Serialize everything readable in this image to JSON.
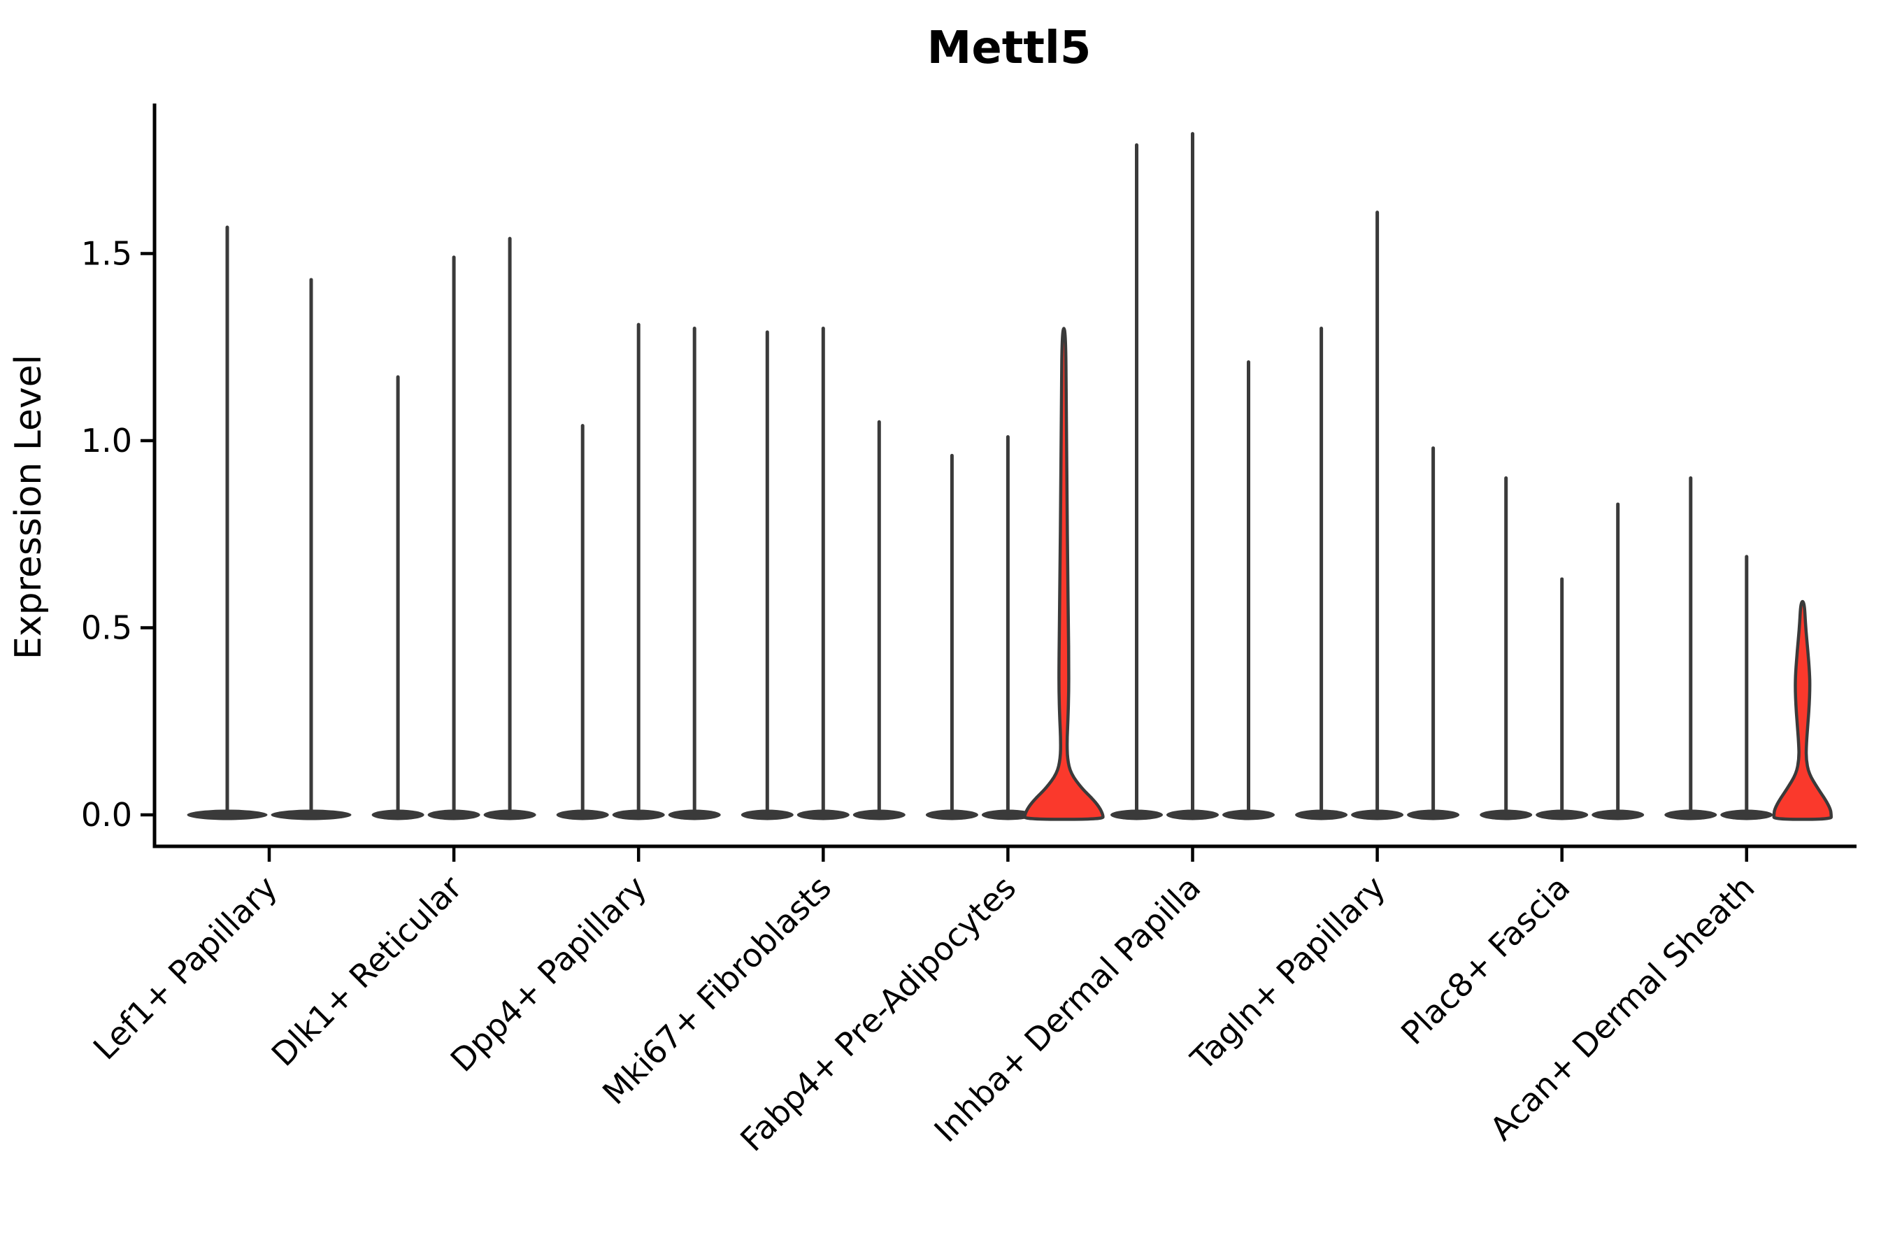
{
  "title": "Mettl5",
  "ylabel": "Expression Level",
  "chart_data": {
    "type": "violin",
    "title": "Mettl5",
    "xlabel": "",
    "ylabel": "Expression Level",
    "ylim": [
      0,
      1.9
    ],
    "grid": false,
    "legend": "none",
    "yticks": [
      {
        "value": 0.0,
        "label": "0.0"
      },
      {
        "value": 0.5,
        "label": "0.5"
      },
      {
        "value": 1.0,
        "label": "1.0"
      },
      {
        "value": 1.5,
        "label": "1.5"
      }
    ],
    "categories": [
      "Lef1+ Papillary",
      "Dlk1+ Reticular",
      "Dpp4+ Papillary",
      "Mki67+ Fibroblasts",
      "Fabp4+ Pre-Adipocytes",
      "Inhba+ Dermal Papilla",
      "Tagln+ Papillary",
      "Plac8+ Fascia",
      "Acan+ Dermal Sheath"
    ],
    "groups": [
      {
        "category": "Lef1+ Papillary",
        "violins": [
          {
            "peak": 1.57
          },
          {
            "peak": 1.43
          }
        ]
      },
      {
        "category": "Dlk1+ Reticular",
        "violins": [
          {
            "peak": 1.17
          },
          {
            "peak": 1.49
          },
          {
            "peak": 1.54
          }
        ]
      },
      {
        "category": "Dpp4+ Papillary",
        "violins": [
          {
            "peak": 1.04
          },
          {
            "peak": 1.31
          },
          {
            "peak": 1.3
          }
        ]
      },
      {
        "category": "Mki67+ Fibroblasts",
        "violins": [
          {
            "peak": 1.29
          },
          {
            "peak": 1.3
          },
          {
            "peak": 1.05
          }
        ]
      },
      {
        "category": "Fabp4+ Pre-Adipocytes",
        "violins": [
          {
            "peak": 0.96
          },
          {
            "peak": 1.01
          },
          {
            "peak": 1.3,
            "highlight": true,
            "profile": "fabp4_red"
          }
        ]
      },
      {
        "category": "Inhba+ Dermal Papilla",
        "violins": [
          {
            "peak": 1.79
          },
          {
            "peak": 1.82
          },
          {
            "peak": 1.21
          }
        ]
      },
      {
        "category": "Tagln+ Papillary",
        "violins": [
          {
            "peak": 1.3
          },
          {
            "peak": 1.61
          },
          {
            "peak": 0.98
          }
        ]
      },
      {
        "category": "Plac8+ Fascia",
        "violins": [
          {
            "peak": 0.9
          },
          {
            "peak": 0.63
          },
          {
            "peak": 0.83
          }
        ]
      },
      {
        "category": "Acan+ Dermal Sheath",
        "violins": [
          {
            "peak": 0.9
          },
          {
            "peak": 0.69
          },
          {
            "peak": 0.57,
            "highlight": true,
            "profile": "acan_red"
          }
        ]
      }
    ],
    "highlight_profiles": {
      "fabp4_red": [
        [
          1.3,
          2.5
        ],
        [
          1.1,
          3.5
        ],
        [
          0.85,
          4.5
        ],
        [
          0.65,
          5.5
        ],
        [
          0.5,
          6.5
        ],
        [
          0.4,
          7.0
        ],
        [
          0.33,
          7.0
        ],
        [
          0.26,
          6.0
        ],
        [
          0.2,
          4.5
        ],
        [
          0.15,
          5.0
        ],
        [
          0.11,
          10.0
        ],
        [
          0.07,
          26.0
        ],
        [
          0.045,
          40.0
        ],
        [
          0.02,
          51.0
        ],
        [
          0.0,
          56.0
        ],
        [
          -0.012,
          56.0
        ]
      ],
      "acan_red": [
        [
          0.57,
          2.5
        ],
        [
          0.5,
          4.5
        ],
        [
          0.44,
          7.5
        ],
        [
          0.38,
          10.0
        ],
        [
          0.34,
          10.5
        ],
        [
          0.29,
          9.5
        ],
        [
          0.24,
          7.5
        ],
        [
          0.19,
          5.5
        ],
        [
          0.15,
          5.0
        ],
        [
          0.11,
          9.0
        ],
        [
          0.07,
          22.0
        ],
        [
          0.04,
          33.0
        ],
        [
          0.015,
          40.0
        ],
        [
          0.0,
          41.0
        ],
        [
          -0.012,
          41.0
        ]
      ]
    },
    "colors": {
      "violin_line": "#3a3a3a",
      "highlight_fill": "#fa392c",
      "axis": "#000000",
      "text": "#000000",
      "background": "#ffffff"
    }
  }
}
